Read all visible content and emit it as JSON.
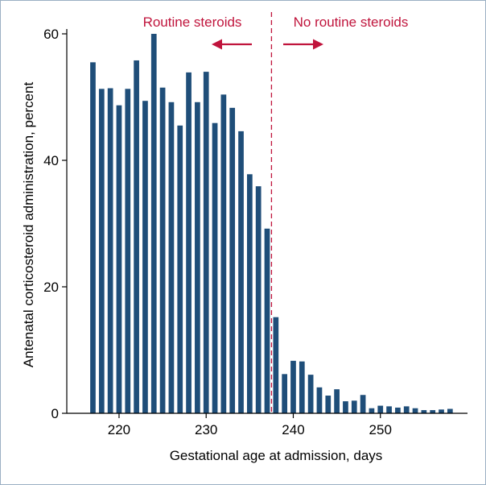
{
  "chart_data": {
    "type": "bar",
    "title": "",
    "xlabel": "Gestational age at admission, days",
    "ylabel": "Antenatal corticosteroid administration, percent",
    "xlim": [
      214,
      260
    ],
    "ylim": [
      0,
      60
    ],
    "xticks": [
      220,
      230,
      240,
      250
    ],
    "yticks": [
      0,
      20,
      40,
      60
    ],
    "bar_color": "#1f4e79",
    "accent_color": "#c0143c",
    "grid": false,
    "cutoff_x": 237.5,
    "x": [
      217,
      218,
      219,
      220,
      221,
      222,
      223,
      224,
      225,
      226,
      227,
      228,
      229,
      230,
      231,
      232,
      233,
      234,
      235,
      236,
      237,
      238,
      239,
      240,
      241,
      242,
      243,
      244,
      245,
      246,
      247,
      248,
      249,
      250,
      251,
      252,
      253,
      254,
      255,
      256,
      257,
      258
    ],
    "values": [
      55.5,
      51.3,
      51.4,
      48.7,
      51.3,
      55.8,
      49.4,
      60.0,
      51.5,
      49.2,
      45.5,
      53.9,
      49.2,
      54.0,
      45.9,
      50.4,
      48.3,
      44.6,
      37.8,
      35.9,
      29.2,
      15.2,
      6.2,
      8.3,
      8.2,
      6.1,
      4.1,
      2.8,
      3.8,
      1.9,
      2.0,
      2.9,
      0.8,
      1.2,
      1.1,
      0.9,
      1.1,
      0.8,
      0.5,
      0.5,
      0.6,
      0.7
    ],
    "annotations": {
      "left_label": "Routine steroids",
      "right_label": "No routine steroids",
      "left_arrow": "left-arrow",
      "right_arrow": "right-arrow"
    }
  }
}
